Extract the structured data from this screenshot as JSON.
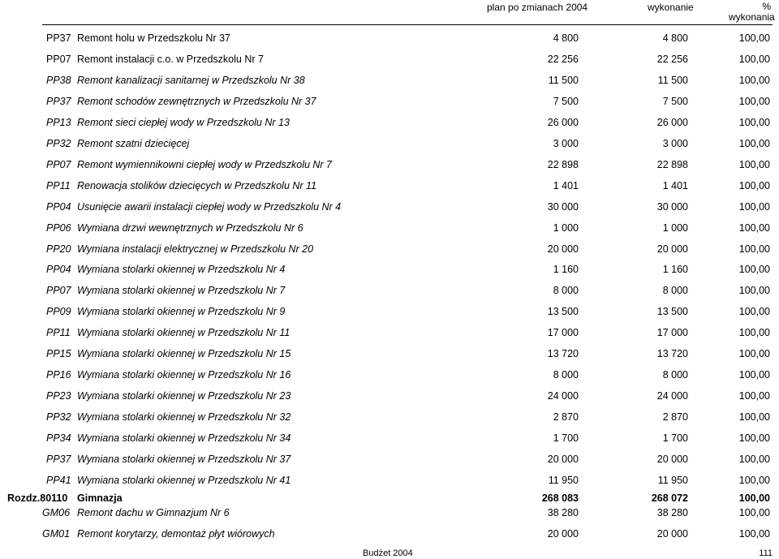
{
  "header": {
    "plan": "plan po zmianach 2004",
    "wykonanie": "wykonanie",
    "pct_line1": "%",
    "pct_line2": "wykonania"
  },
  "rows": [
    {
      "code": "PP37",
      "desc": "Remont holu w Przedszkolu Nr 37",
      "plan": "4 800",
      "wyk": "4 800",
      "pct": "100,00",
      "style": "plain"
    },
    {
      "code": "PP07",
      "desc": "Remont instalacji c.o. w Przedszkolu Nr  7",
      "plan": "22 256",
      "wyk": "22 256",
      "pct": "100,00",
      "style": "plain"
    },
    {
      "code": "PP38",
      "desc": "Remont kanalizacji sanitarnej w Przedszkolu Nr 38",
      "plan": "11 500",
      "wyk": "11 500",
      "pct": "100,00",
      "style": "italic"
    },
    {
      "code": "PP37",
      "desc": "Remont schodów zewnętrznych w Przedszkolu Nr 37",
      "plan": "7 500",
      "wyk": "7 500",
      "pct": "100,00",
      "style": "italic"
    },
    {
      "code": "PP13",
      "desc": "Remont sieci ciepłej wody w Przedszkolu Nr 13",
      "plan": "26 000",
      "wyk": "26 000",
      "pct": "100,00",
      "style": "italic"
    },
    {
      "code": "PP32",
      "desc": "Remont szatni dziecięcej",
      "plan": "3 000",
      "wyk": "3 000",
      "pct": "100,00",
      "style": "italic"
    },
    {
      "code": "PP07",
      "desc": "Remont wymiennikowni ciepłej wody w Przedszkolu Nr 7",
      "plan": "22 898",
      "wyk": "22 898",
      "pct": "100,00",
      "style": "italic"
    },
    {
      "code": "PP11",
      "desc": "Renowacja stolików dziecięcych w Przedszkolu Nr 11",
      "plan": "1 401",
      "wyk": "1 401",
      "pct": "100,00",
      "style": "italic"
    },
    {
      "code": "PP04",
      "desc": "Usunięcie awarii instalacji ciepłej wody w Przedszkolu Nr  4",
      "plan": "30 000",
      "wyk": "30 000",
      "pct": "100,00",
      "style": "italic"
    },
    {
      "code": "PP06",
      "desc": "Wymiana drzwi wewnętrznych w Przedszkolu Nr  6",
      "plan": "1 000",
      "wyk": "1 000",
      "pct": "100,00",
      "style": "italic"
    },
    {
      "code": "PP20",
      "desc": "Wymiana instalacji elektrycznej w Przedszkolu Nr 20",
      "plan": "20 000",
      "wyk": "20 000",
      "pct": "100,00",
      "style": "italic"
    },
    {
      "code": "PP04",
      "desc": "Wymiana stolarki okiennej w Przedszkolu Nr  4",
      "plan": "1 160",
      "wyk": "1 160",
      "pct": "100,00",
      "style": "italic"
    },
    {
      "code": "PP07",
      "desc": "Wymiana stolarki okiennej w Przedszkolu Nr  7",
      "plan": "8 000",
      "wyk": "8 000",
      "pct": "100,00",
      "style": "italic"
    },
    {
      "code": "PP09",
      "desc": "Wymiana stolarki okiennej w Przedszkolu Nr  9",
      "plan": "13 500",
      "wyk": "13 500",
      "pct": "100,00",
      "style": "italic"
    },
    {
      "code": "PP11",
      "desc": "Wymiana stolarki okiennej w Przedszkolu Nr 11",
      "plan": "17 000",
      "wyk": "17 000",
      "pct": "100,00",
      "style": "italic"
    },
    {
      "code": "PP15",
      "desc": "Wymiana stolarki okiennej w Przedszkolu Nr 15",
      "plan": "13 720",
      "wyk": "13 720",
      "pct": "100,00",
      "style": "italic"
    },
    {
      "code": "PP16",
      "desc": "Wymiana stolarki okiennej w Przedszkolu Nr 16",
      "plan": "8 000",
      "wyk": "8 000",
      "pct": "100,00",
      "style": "italic"
    },
    {
      "code": "PP23",
      "desc": "Wymiana stolarki okiennej w Przedszkolu Nr 23",
      "plan": "24 000",
      "wyk": "24 000",
      "pct": "100,00",
      "style": "italic"
    },
    {
      "code": "PP32",
      "desc": "Wymiana stolarki okiennej w Przedszkolu Nr 32",
      "plan": "2 870",
      "wyk": "2 870",
      "pct": "100,00",
      "style": "italic"
    },
    {
      "code": "PP34",
      "desc": "Wymiana stolarki okiennej w Przedszkolu Nr 34",
      "plan": "1 700",
      "wyk": "1 700",
      "pct": "100,00",
      "style": "italic"
    },
    {
      "code": "PP37",
      "desc": "Wymiana stolarki okiennej w Przedszkolu Nr 37",
      "plan": "20 000",
      "wyk": "20 000",
      "pct": "100,00",
      "style": "italic"
    },
    {
      "code": "PP41",
      "desc": "Wymiana stolarki okiennej w Przedszkolu Nr 41",
      "plan": "11 950",
      "wyk": "11 950",
      "pct": "100,00",
      "style": "italic"
    },
    {
      "code": "Rozdz.80110",
      "desc": "Gimnazja",
      "plan": "268 083",
      "wyk": "268 072",
      "pct": "100,00",
      "style": "section"
    },
    {
      "code": "GM06",
      "desc": "Remont dachu w Gimnazjum Nr  6",
      "plan": "38 280",
      "wyk": "38 280",
      "pct": "100,00",
      "style": "italic-g"
    },
    {
      "code": "GM01",
      "desc": "Remont korytarzy, demontaż płyt wiórowych",
      "plan": "20 000",
      "wyk": "20 000",
      "pct": "100,00",
      "style": "italic-g"
    }
  ],
  "footer": {
    "title": "Budżet 2004",
    "page": "111"
  }
}
